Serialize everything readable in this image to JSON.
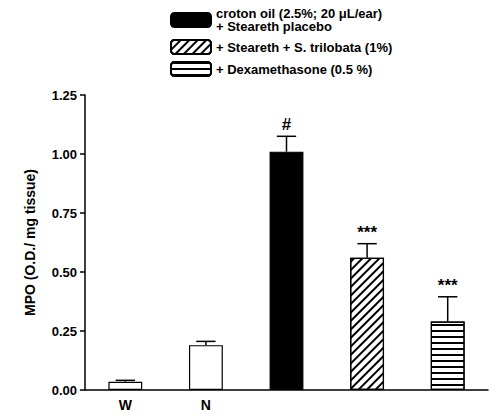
{
  "chart_data": {
    "type": "bar",
    "categories": [
      "W",
      "N",
      null,
      null,
      null
    ],
    "y_label": "MPO (O.D./ mg tissue)",
    "ylim": [
      0,
      1.25
    ],
    "yticks": [
      {
        "value": 0,
        "label": "0.00"
      },
      {
        "value": 0.25,
        "label": "0.25"
      },
      {
        "value": 0.5,
        "label": "0.50"
      },
      {
        "value": 0.75,
        "label": "0.75"
      },
      {
        "value": 1,
        "label": "1.00"
      },
      {
        "value": 1.25,
        "label": "1.25"
      }
    ],
    "legend": "top",
    "grid": false,
    "series": [
      {
        "color": "#ffffff",
        "values": [
          0.035,
          0.19,
          null,
          null,
          null
        ],
        "errors": [
          0.006,
          0.016,
          null,
          null,
          null
        ]
      },
      {
        "name": "croton oil (2.5%; 20 μL/ear)\n+ Steareth placebo",
        "color": "#000000",
        "values": [
          null,
          null,
          1.01,
          null,
          null
        ],
        "errors": [
          null,
          null,
          0.065,
          null,
          null
        ],
        "annotations": [
          null,
          null,
          "#",
          null,
          null
        ]
      },
      {
        "name": "+ Steareth + S. trilobata (1%)",
        "color": "#ffffff",
        "values": [
          null,
          null,
          null,
          0.56,
          null
        ],
        "errors": [
          null,
          null,
          null,
          0.06,
          null
        ],
        "annotations": [
          null,
          null,
          null,
          "***",
          null
        ]
      },
      {
        "name": "+ Dexamethasone (0.5 %)",
        "color": "#ffffff",
        "values": [
          null,
          null,
          null,
          null,
          0.29
        ],
        "errors": [
          null,
          null,
          null,
          null,
          0.105
        ],
        "annotations": [
          null,
          null,
          null,
          null,
          "***"
        ]
      }
    ]
  }
}
